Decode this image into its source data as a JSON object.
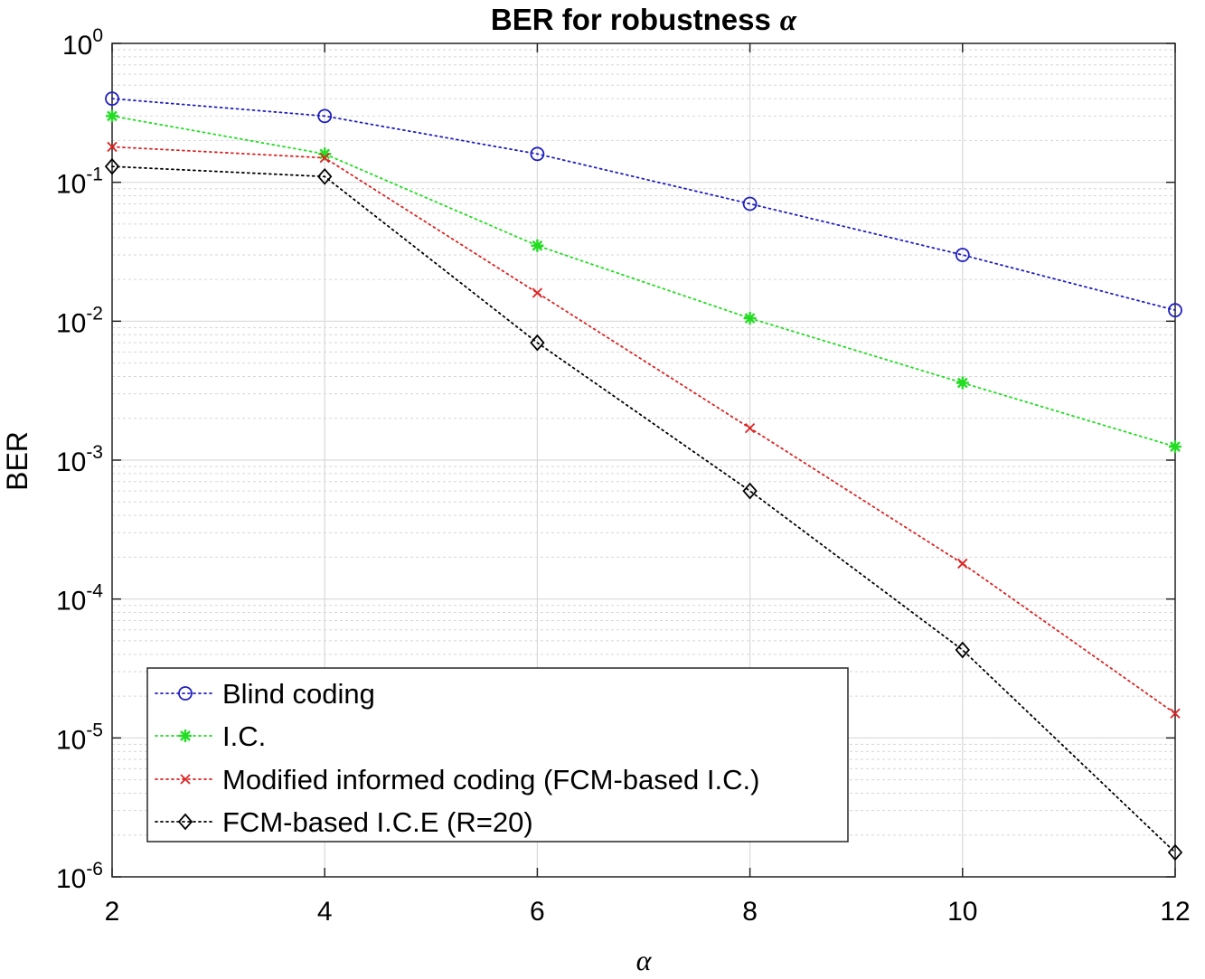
{
  "chart_data": {
    "type": "line",
    "title": "BER for robustness",
    "title_symbol": "α",
    "xlabel": "α",
    "ylabel": "BER",
    "x": [
      2,
      4,
      6,
      8,
      10,
      12
    ],
    "xlim": [
      2,
      12
    ],
    "x_ticks": [
      2,
      4,
      6,
      8,
      10,
      12
    ],
    "x_tick_labels": [
      "2",
      "4",
      "6",
      "8",
      "10",
      "12"
    ],
    "yscale": "log",
    "ylim": [
      1e-06,
      1
    ],
    "y_ticks": [
      {
        "base": "10",
        "exp": "0"
      },
      {
        "base": "10",
        "exp": "-1"
      },
      {
        "base": "10",
        "exp": "-2"
      },
      {
        "base": "10",
        "exp": "-3"
      },
      {
        "base": "10",
        "exp": "-4"
      },
      {
        "base": "10",
        "exp": "-5"
      },
      {
        "base": "10",
        "exp": "-6"
      }
    ],
    "grid": true,
    "legend_position": "bottom-left",
    "series": [
      {
        "name": "Blind coding",
        "color": "#1f1fbf",
        "marker": "circle",
        "line": "dotted",
        "values": [
          0.4,
          0.3,
          0.16,
          0.07,
          0.03,
          0.012
        ]
      },
      {
        "name": "I.C.",
        "color": "#22dd22",
        "marker": "asterisk",
        "line": "dotted",
        "values": [
          0.3,
          0.16,
          0.035,
          0.0105,
          0.0036,
          0.00125
        ]
      },
      {
        "name": "Modified informed coding (FCM-based I.C.)",
        "color": "#dd2222",
        "marker": "cross",
        "line": "dotted",
        "values": [
          0.18,
          0.15,
          0.016,
          0.0017,
          0.00018,
          1.5e-05
        ]
      },
      {
        "name": "FCM-based I.C.E (R=20)",
        "color": "#000000",
        "marker": "diamond",
        "line": "dotted",
        "values": [
          0.13,
          0.11,
          0.007,
          0.0006,
          4.3e-05,
          1.5e-06
        ]
      }
    ]
  }
}
